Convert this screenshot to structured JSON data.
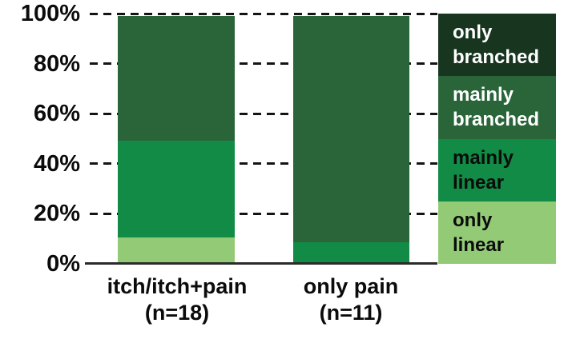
{
  "chart_data": {
    "type": "bar",
    "stacked": true,
    "title": "",
    "xlabel": "",
    "ylabel": "",
    "ylim": [
      0,
      100
    ],
    "yticks": [
      0,
      20,
      40,
      60,
      80,
      100
    ],
    "grid": "dashed-horizontal",
    "legend_position": "right",
    "categories": [
      "itch/itch+pain (n=18)",
      "only pain (n=11)"
    ],
    "series": [
      {
        "name": "only linear",
        "color": "#93ca76",
        "values": [
          11,
          0
        ]
      },
      {
        "name": "mainly linear",
        "color": "#118b45",
        "values": [
          39,
          9
        ]
      },
      {
        "name": "mainly branched",
        "color": "#2a653a",
        "values": [
          50,
          91
        ]
      },
      {
        "name": "only branched",
        "color": "#17351f",
        "values": [
          0,
          0
        ]
      }
    ]
  },
  "y_axis": {
    "ticks": [
      {
        "label": "0%",
        "value": 0
      },
      {
        "label": "20%",
        "value": 20
      },
      {
        "label": "40%",
        "value": 40
      },
      {
        "label": "60%",
        "value": 60
      },
      {
        "label": "80%",
        "value": 80
      },
      {
        "label": "100%",
        "value": 100
      }
    ]
  },
  "x_axis": {
    "categories": [
      {
        "line1": "itch/itch+pain",
        "line2": "(n=18)"
      },
      {
        "line1": "only pain",
        "line2": "(n=11)"
      }
    ]
  },
  "legend": {
    "items": [
      {
        "label": "only branched",
        "color": "#17351f",
        "text_color": "#ffffff"
      },
      {
        "label": "mainly branched",
        "color": "#2a653a",
        "text_color": "#ffffff"
      },
      {
        "label": "mainly linear",
        "color": "#118b45",
        "text_color": "#0b0b0b"
      },
      {
        "label": "only linear",
        "color": "#93ca76",
        "text_color": "#0b0b0b"
      }
    ]
  }
}
